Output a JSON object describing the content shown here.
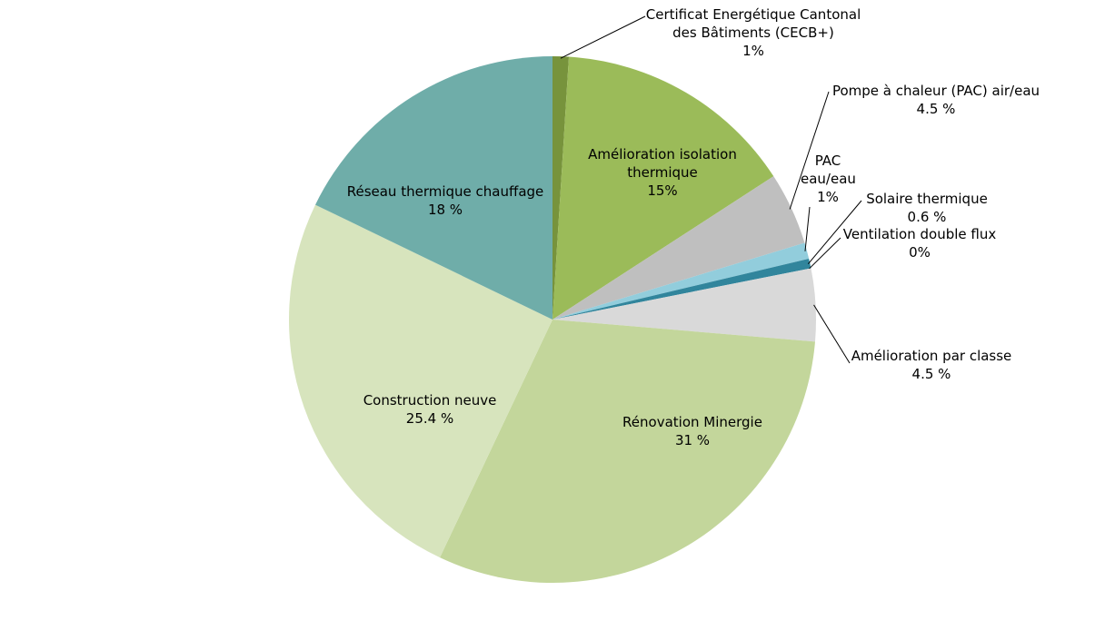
{
  "chart_data": {
    "type": "pie",
    "categories": [
      "Certificat Energétique Cantonal des Bâtiments (CECB+)",
      "Amélioration isolation thermique",
      "Pompe à chaleur (PAC) air/eau",
      "PAC eau/eau",
      "Solaire thermique",
      "Ventilation double flux",
      "Amélioration par classe",
      "Rénovation Minergie",
      "Construction neuve",
      "Réseau thermique chauffage"
    ],
    "values": [
      1,
      15,
      4.5,
      1,
      0.6,
      0,
      4.5,
      31,
      25.4,
      18
    ],
    "value_labels": [
      "1%",
      "15%",
      "4.5 %",
      "1%",
      "0.6 %",
      "0%",
      "4.5 %",
      "31 %",
      "25.4 %",
      "18 %"
    ],
    "colors": [
      "#77933c",
      "#9bbb59",
      "#bfbfbf",
      "#92cddc",
      "#31859c",
      "#a9d18e",
      "#d9d9d9",
      "#c3d69b",
      "#d7e4bd",
      "#6fada9"
    ]
  }
}
